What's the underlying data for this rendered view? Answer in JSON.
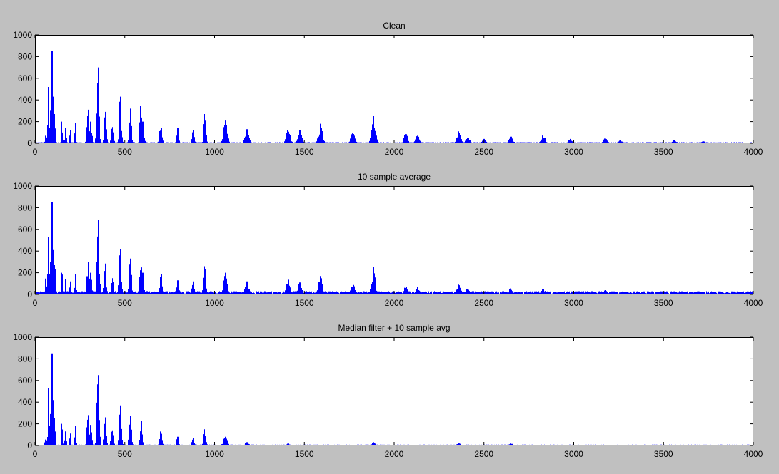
{
  "figure": {
    "background": "#c0c0c0",
    "axes_background": "#ffffff",
    "line_color": "#0000ff"
  },
  "chart_data": [
    {
      "type": "line",
      "title": "Clean",
      "xlabel": "",
      "ylabel": "",
      "xlim": [
        0,
        4000
      ],
      "ylim": [
        0,
        1000
      ],
      "xticks": [
        0,
        500,
        1000,
        1500,
        2000,
        2500,
        3000,
        3500,
        4000
      ],
      "yticks": [
        0,
        200,
        400,
        600,
        800,
        1000
      ],
      "grid": false,
      "noise_floor": 10,
      "series": [
        {
          "color": "#0000ff",
          "peaks": [
            [
              60,
              170
            ],
            [
              75,
              520
            ],
            [
              85,
              300
            ],
            [
              95,
              850
            ],
            [
              102,
              430
            ],
            [
              110,
              270
            ],
            [
              150,
              200
            ],
            [
              170,
              140
            ],
            [
              195,
              120
            ],
            [
              225,
              190
            ],
            [
              295,
              310
            ],
            [
              310,
              200
            ],
            [
              350,
              700
            ],
            [
              390,
              290
            ],
            [
              430,
              150
            ],
            [
              475,
              430
            ],
            [
              530,
              320
            ],
            [
              590,
              370
            ],
            [
              600,
              200
            ],
            [
              700,
              220
            ],
            [
              795,
              140
            ],
            [
              880,
              120
            ],
            [
              945,
              270
            ],
            [
              1060,
              210
            ],
            [
              1180,
              130
            ],
            [
              1410,
              140
            ],
            [
              1475,
              120
            ],
            [
              1590,
              180
            ],
            [
              1770,
              110
            ],
            [
              1885,
              250
            ],
            [
              2065,
              90
            ],
            [
              2130,
              70
            ],
            [
              2360,
              110
            ],
            [
              2410,
              60
            ],
            [
              2500,
              40
            ],
            [
              2650,
              70
            ],
            [
              2830,
              80
            ],
            [
              2980,
              40
            ],
            [
              3175,
              50
            ],
            [
              3260,
              30
            ],
            [
              3560,
              30
            ],
            [
              3720,
              20
            ]
          ]
        }
      ]
    },
    {
      "type": "line",
      "title": "10 sample average",
      "xlabel": "",
      "ylabel": "",
      "xlim": [
        0,
        4000
      ],
      "ylim": [
        0,
        1000
      ],
      "xticks": [
        0,
        500,
        1000,
        1500,
        2000,
        2500,
        3000,
        3500,
        4000
      ],
      "yticks": [
        0,
        200,
        400,
        600,
        800,
        1000
      ],
      "grid": false,
      "noise_floor": 30,
      "series": [
        {
          "color": "#0000ff",
          "peaks": [
            [
              60,
              170
            ],
            [
              75,
              530
            ],
            [
              85,
              300
            ],
            [
              95,
              850
            ],
            [
              102,
              410
            ],
            [
              110,
              270
            ],
            [
              150,
              200
            ],
            [
              170,
              140
            ],
            [
              195,
              120
            ],
            [
              225,
              190
            ],
            [
              295,
              300
            ],
            [
              310,
              200
            ],
            [
              350,
              690
            ],
            [
              390,
              285
            ],
            [
              430,
              150
            ],
            [
              475,
              420
            ],
            [
              530,
              330
            ],
            [
              590,
              360
            ],
            [
              600,
              200
            ],
            [
              700,
              220
            ],
            [
              795,
              130
            ],
            [
              880,
              120
            ],
            [
              945,
              260
            ],
            [
              1060,
              200
            ],
            [
              1180,
              120
            ],
            [
              1410,
              150
            ],
            [
              1475,
              110
            ],
            [
              1590,
              170
            ],
            [
              1770,
              100
            ],
            [
              1885,
              250
            ],
            [
              2065,
              80
            ],
            [
              2130,
              70
            ],
            [
              2360,
              90
            ],
            [
              2410,
              60
            ],
            [
              2650,
              60
            ],
            [
              2830,
              60
            ],
            [
              3175,
              40
            ]
          ]
        }
      ]
    },
    {
      "type": "line",
      "title": "Median filter + 10 sample avg",
      "xlabel": "",
      "ylabel": "",
      "xlim": [
        0,
        4000
      ],
      "ylim": [
        0,
        1000
      ],
      "xticks": [
        0,
        500,
        1000,
        1500,
        2000,
        2500,
        3000,
        3500,
        4000
      ],
      "yticks": [
        0,
        200,
        400,
        600,
        800,
        1000
      ],
      "grid": false,
      "noise_floor": 8,
      "series": [
        {
          "color": "#0000ff",
          "peaks": [
            [
              60,
              160
            ],
            [
              75,
              530
            ],
            [
              85,
              290
            ],
            [
              95,
              850
            ],
            [
              102,
              420
            ],
            [
              110,
              250
            ],
            [
              150,
              200
            ],
            [
              170,
              130
            ],
            [
              195,
              110
            ],
            [
              225,
              180
            ],
            [
              295,
              280
            ],
            [
              310,
              190
            ],
            [
              350,
              650
            ],
            [
              390,
              260
            ],
            [
              430,
              140
            ],
            [
              475,
              370
            ],
            [
              530,
              270
            ],
            [
              590,
              260
            ],
            [
              700,
              160
            ],
            [
              795,
              80
            ],
            [
              880,
              70
            ],
            [
              945,
              150
            ],
            [
              1060,
              80
            ],
            [
              1180,
              30
            ],
            [
              1410,
              20
            ],
            [
              1885,
              30
            ],
            [
              2360,
              20
            ],
            [
              2650,
              20
            ]
          ]
        }
      ]
    }
  ]
}
